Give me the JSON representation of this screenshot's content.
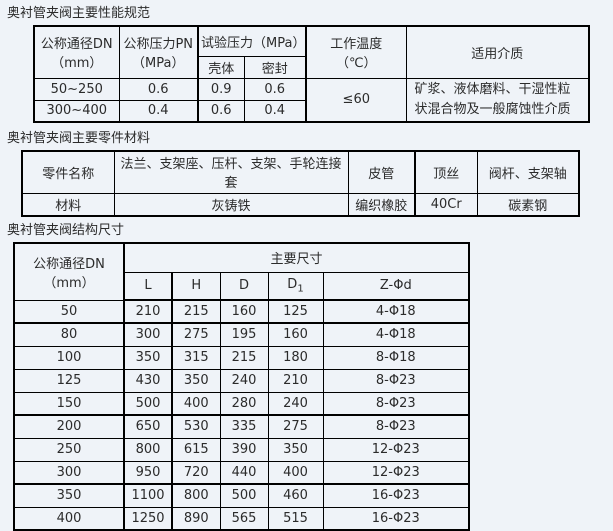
{
  "colors": {
    "background": "#eff3f8",
    "table_border": "#000000",
    "text": "#2b2b2b"
  },
  "section1": {
    "title": "奥衬管夹阀主要性能规范",
    "table": {
      "headers": {
        "dn_line1": "公称通径DN",
        "dn_line2": "（mm）",
        "pn_line1": "公称压力PN",
        "pn_line2": "（MPa）",
        "test_pressure": "试验压力（MPa）",
        "shell": "壳体",
        "seal": "密封",
        "temp_line1": "工作温度",
        "temp_line2": "（℃）",
        "media": "适用介质"
      },
      "rows": [
        {
          "dn": "50~250",
          "pn": "0.6",
          "shell": "0.9",
          "seal": "0.6"
        },
        {
          "dn": "300~400",
          "pn": "0.4",
          "shell": "0.6",
          "seal": "0.4"
        }
      ],
      "temp_value": "≤60",
      "media_value": "矿浆、液体磨料、干湿性粒状混合物及一般腐蚀性介质"
    }
  },
  "section2": {
    "title": "奥衬管夹阀主要零件材料",
    "table": {
      "row1_label": "零件名称",
      "row2_label": "材料",
      "columns": [
        {
          "part": "法兰、支架座、压杆、支架、手轮连接套",
          "material": "灰铸铁"
        },
        {
          "part": "皮管",
          "material": "编织橡胶"
        },
        {
          "part": "顶丝",
          "material": "40Cr"
        },
        {
          "part": "阀杆、支架轴",
          "material": "碳素钢"
        }
      ]
    }
  },
  "section3": {
    "title": "奥衬管夹阀结构尺寸",
    "table": {
      "dn_line1": "公称通径DN",
      "dn_line2": "（mm）",
      "main_header": "主要尺寸",
      "col_l": "L",
      "col_h": "H",
      "col_d": "D",
      "col_d1_base": "D",
      "col_d1_sub": "1",
      "col_zd": "Z-Φd",
      "rows": [
        [
          "50",
          "210",
          "215",
          "160",
          "125",
          "4-Φ18"
        ],
        [
          "80",
          "300",
          "275",
          "195",
          "160",
          "4-Φ18"
        ],
        [
          "100",
          "350",
          "315",
          "215",
          "180",
          "8-Φ18"
        ],
        [
          "125",
          "430",
          "350",
          "240",
          "210",
          "8-Φ23"
        ],
        [
          "150",
          "500",
          "400",
          "280",
          "240",
          "8-Φ23"
        ],
        [
          "200",
          "650",
          "530",
          "335",
          "275",
          "8-Φ23"
        ],
        [
          "250",
          "800",
          "615",
          "390",
          "350",
          "12-Φ23"
        ],
        [
          "300",
          "950",
          "720",
          "440",
          "400",
          "12-Φ23"
        ],
        [
          "350",
          "1100",
          "800",
          "500",
          "460",
          "16-Φ23"
        ],
        [
          "400",
          "1250",
          "890",
          "565",
          "515",
          "16-Φ23"
        ]
      ]
    }
  }
}
